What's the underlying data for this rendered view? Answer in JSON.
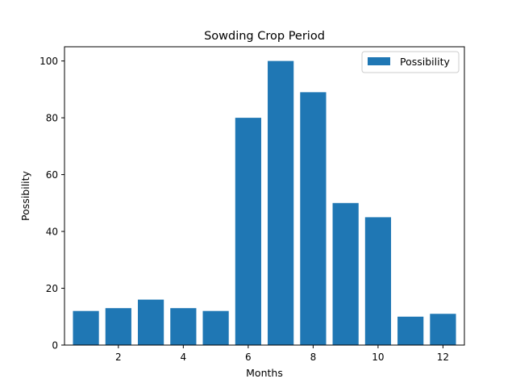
{
  "chart_data": {
    "type": "bar",
    "title": "Sowding Crop Period",
    "xlabel": "Months",
    "ylabel": "Possibility",
    "categories": [
      1,
      2,
      3,
      4,
      5,
      6,
      7,
      8,
      9,
      10,
      11,
      12
    ],
    "series": [
      {
        "name": "Possibility",
        "color": "#1f77b4",
        "values": [
          12,
          13,
          16,
          13,
          12,
          80,
          100,
          89,
          50,
          45,
          10,
          11
        ]
      }
    ],
    "xlim": [
      0.34,
      12.66
    ],
    "ylim": [
      0,
      105
    ],
    "xticks": [
      {
        "value": 2,
        "label": "2"
      },
      {
        "value": 4,
        "label": "4"
      },
      {
        "value": 6,
        "label": "6"
      },
      {
        "value": 8,
        "label": "8"
      },
      {
        "value": 10,
        "label": "10"
      },
      {
        "value": 12,
        "label": "12"
      }
    ],
    "yticks": [
      {
        "value": 0,
        "label": "0"
      },
      {
        "value": 20,
        "label": "20"
      },
      {
        "value": 40,
        "label": "40"
      },
      {
        "value": 60,
        "label": "60"
      },
      {
        "value": 80,
        "label": "80"
      },
      {
        "value": 100,
        "label": "100"
      }
    ],
    "grid": false,
    "legend_position": "top-right"
  }
}
